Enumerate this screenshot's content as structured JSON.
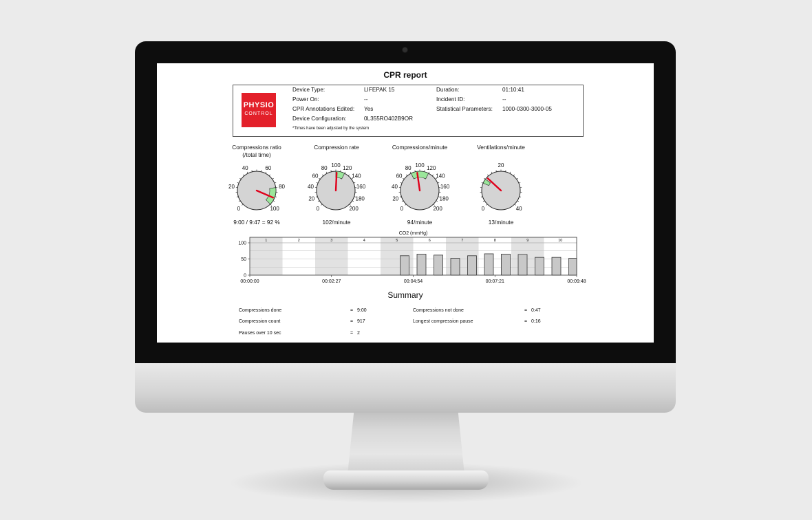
{
  "report": {
    "title": "CPR report",
    "logo": {
      "line1": "PHYSIO",
      "line2": "CONTROL",
      "color": "#e3202a"
    },
    "info_left": [
      {
        "label": "Device Type:",
        "value": "LIFEPAK 15"
      },
      {
        "label": "Power On:",
        "value": "--"
      },
      {
        "label": "CPR Annotations Edited:",
        "value": "Yes"
      },
      {
        "label": "Device Configuration:",
        "value": "0L355RO402B9OR"
      }
    ],
    "info_right": [
      {
        "label": "Duration:",
        "value": "01:10:41"
      },
      {
        "label": "Incident ID:",
        "value": "--"
      },
      {
        "label": "Statistical Parameters:",
        "value": "1000-0300-3000-05"
      }
    ],
    "note": "*Times have been adjusted by the system"
  },
  "gauges": [
    {
      "title": "Compressions ratio\n(/total time)",
      "ticks": [
        "0",
        "20",
        "40",
        "60",
        "80",
        "100"
      ],
      "max": 100,
      "needle": 92,
      "target": [
        80,
        100
      ],
      "value_text": "9:00 / 9:47 = 92 %"
    },
    {
      "title": "Compression rate",
      "ticks": [
        "0",
        "20",
        "40",
        "60",
        "80",
        "100",
        "120",
        "140",
        "160",
        "180",
        "200"
      ],
      "max": 200,
      "needle": 102,
      "target": [
        100,
        120
      ],
      "value_text": "102/minute"
    },
    {
      "title": "Compressions/minute",
      "ticks": [
        "0",
        "20",
        "40",
        "60",
        "80",
        "100",
        "120",
        "140",
        "160",
        "180",
        "200"
      ],
      "max": 200,
      "needle": 94,
      "target": [
        80,
        120
      ],
      "value_text": "94/minute"
    },
    {
      "title": "Ventilations/minute",
      "ticks": [
        "0",
        "20",
        "40"
      ],
      "max": 40,
      "needle": 13,
      "target": [
        10,
        12
      ],
      "value_text": "13/minute"
    }
  ],
  "chart_data": {
    "type": "bar",
    "title": "CO2 (mmHg)",
    "ylim": [
      0,
      100
    ],
    "y_ticks": [
      "100",
      "50",
      "0"
    ],
    "segments": [
      "1",
      "2",
      "3",
      "4",
      "5",
      "6",
      "7",
      "8",
      "9",
      "10"
    ],
    "x_tick_labels": [
      "00:00:00",
      "00:02:27",
      "00:04:54",
      "00:07:21",
      "00:09:48"
    ],
    "values": [
      60,
      65,
      62,
      52,
      60,
      66,
      65,
      64,
      55,
      55,
      52
    ],
    "colors": {
      "bar": "#c8c8c8",
      "band": "#e2e2e2",
      "needle": "#e0001b",
      "target": "#9be69b"
    }
  },
  "summary": {
    "title": "Summary",
    "left": [
      {
        "label": "Compressions done",
        "value": "9:00"
      },
      {
        "label": "Compression count",
        "value": "917"
      },
      {
        "label": "Pauses over 10 sec",
        "value": "2"
      }
    ],
    "right": [
      {
        "label": "Compressions not done",
        "value": "0:47"
      },
      {
        "label": "Longest compression pause",
        "value": "0:16"
      }
    ],
    "eq": "="
  }
}
